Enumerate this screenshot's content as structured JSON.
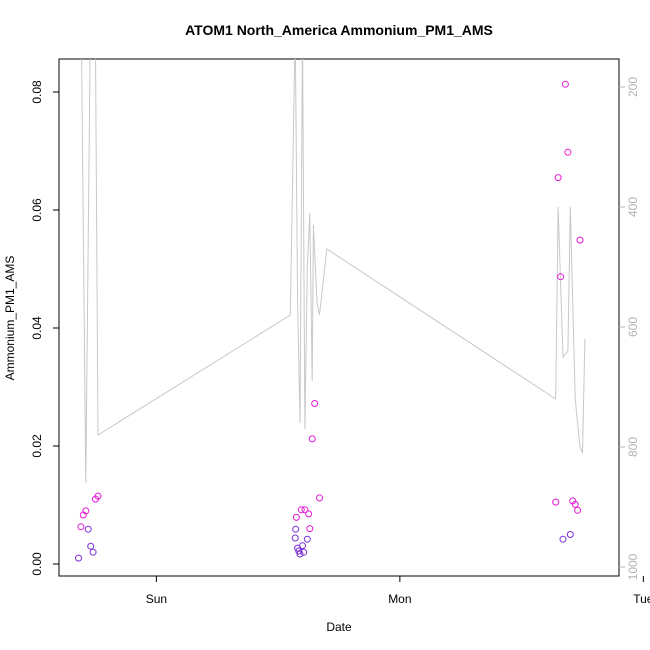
{
  "chart_data": {
    "type": "scatter",
    "title": "ATOM1 North_America Ammonium_PM1_AMS",
    "xlabel": "Date",
    "ylabel": "Ammonium_PM1_AMS",
    "x_ticks": [
      "Sun",
      "Mon",
      "Tue"
    ],
    "y_ticks": [
      "0.00",
      "0.02",
      "0.04",
      "0.06",
      "0.08"
    ],
    "y_ticks_right": [
      "200",
      "400",
      "600",
      "800",
      "1000"
    ],
    "ylim": [
      0,
      0.0865
    ],
    "y2lim": [
      1017,
      134
    ],
    "grid": false,
    "legend": "none",
    "colors": {
      "line": "#c8c8c8",
      "axes": "#000000",
      "right_axis": "#b3b3b3",
      "point_low": "#7a2fd6",
      "point_high": "#e51ad6"
    },
    "series": [
      {
        "type": "points",
        "x": [
          -0.32,
          -0.31,
          -0.3,
          -0.29,
          -0.28,
          -0.27,
          -0.26,
          -0.25,
          -0.24,
          0.57,
          0.572,
          0.575,
          0.58,
          0.585,
          0.59,
          0.595,
          0.6,
          0.605,
          0.61,
          0.62,
          0.625,
          0.63,
          0.64,
          0.65,
          0.67,
          1.64,
          1.65,
          1.66,
          1.67,
          1.68,
          1.69,
          1.7,
          1.71,
          1.72,
          1.73,
          1.74
        ],
        "y": [
          0.001,
          0.0063,
          0.0083,
          0.009,
          0.0059,
          0.003,
          0.002,
          0.011,
          0.0115,
          0.0044,
          0.0059,
          0.0079,
          0.0027,
          0.0022,
          0.0017,
          0.0092,
          0.0031,
          0.002,
          0.0092,
          0.0042,
          0.0085,
          0.006,
          0.0212,
          0.0272,
          0.0112,
          0.0105,
          0.0655,
          0.0487,
          0.0042,
          0.0813,
          0.0698,
          0.005,
          0.0107,
          0.0101,
          0.0091,
          0.0549
        ],
        "note_y": []
      },
      {
        "type": "line",
        "x": [
          -0.33,
          -0.31,
          -0.29,
          -0.27,
          -0.25,
          -0.24,
          -0.22,
          0.55,
          0.57,
          0.58,
          0.59,
          0.6,
          0.61,
          0.62,
          0.63,
          0.64,
          0.645,
          0.655,
          0.66,
          0.67,
          0.7,
          1.64,
          1.65,
          1.67,
          1.69,
          1.7,
          1.72,
          1.74,
          1.75,
          1.76
        ],
        "y": [
          -0.5,
          30,
          860,
          40,
          -0.4,
          780,
          775,
          580,
          100,
          560,
          760,
          110,
          770,
          500,
          410,
          690,
          430,
          520,
          560,
          580,
          470,
          720,
          400,
          650,
          640,
          400,
          720,
          800,
          810,
          620
        ]
      }
    ],
    "x_range": [
      -0.4,
      1.9
    ]
  }
}
